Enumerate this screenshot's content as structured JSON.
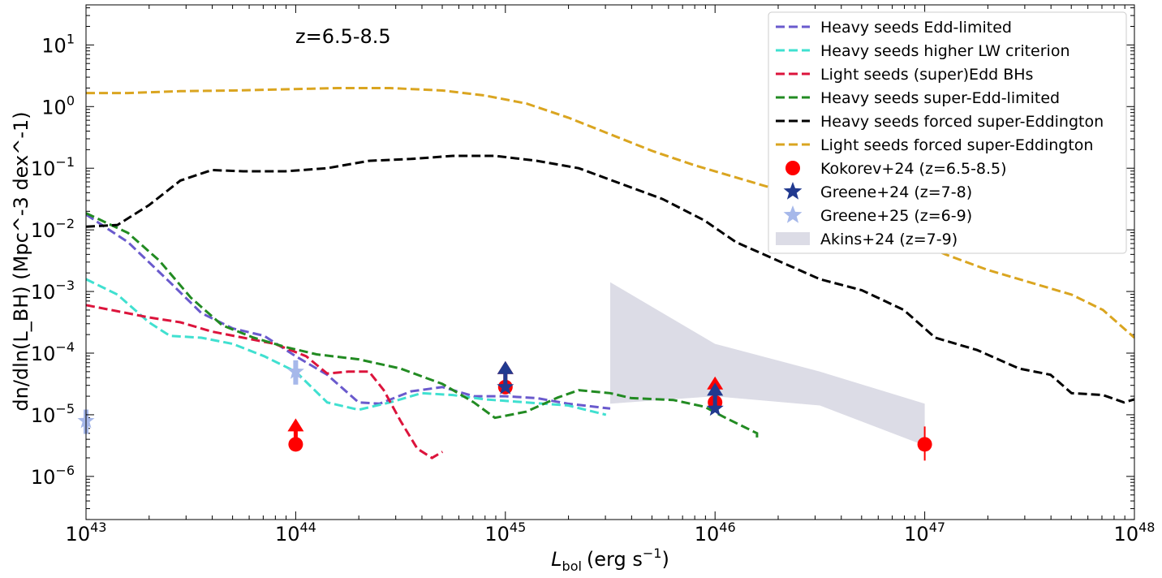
{
  "chart_data": {
    "type": "line",
    "annotation": "z=6.5-8.5",
    "xlabel_main": "L",
    "xlabel_sub": "bol",
    "xlabel_unit": "(erg s",
    "xlabel_exp": "−1",
    "xlabel_close": ")",
    "ylabel": "dn/dln(L_BH) (Mpc^-3 dex^-1)",
    "xscale": "log",
    "yscale": "log",
    "xlim_log10": [
      43,
      48
    ],
    "ylim_log10": [
      -6.7,
      1.65
    ],
    "x_ticks": [
      {
        "base": "10",
        "exp": "43",
        "log": 43
      },
      {
        "base": "10",
        "exp": "44",
        "log": 44
      },
      {
        "base": "10",
        "exp": "45",
        "log": 45
      },
      {
        "base": "10",
        "exp": "46",
        "log": 46
      },
      {
        "base": "10",
        "exp": "47",
        "log": 47
      },
      {
        "base": "10",
        "exp": "48",
        "log": 48
      }
    ],
    "y_ticks": [
      {
        "base": "10",
        "exp": "1",
        "log": 1
      },
      {
        "base": "10",
        "exp": "0",
        "log": 0
      },
      {
        "base": "10",
        "exp": "−1",
        "log": -1
      },
      {
        "base": "10",
        "exp": "−2",
        "log": -2
      },
      {
        "base": "10",
        "exp": "−3",
        "log": -3
      },
      {
        "base": "10",
        "exp": "−4",
        "log": -4
      },
      {
        "base": "10",
        "exp": "−5",
        "log": -5
      },
      {
        "base": "10",
        "exp": "−6",
        "log": -6
      }
    ],
    "series": [
      {
        "name": "Heavy seeds Edd-limited",
        "color": "#6a5acd",
        "points": [
          [
            43.0,
            -1.75
          ],
          [
            43.2,
            -2.2
          ],
          [
            43.4,
            -2.85
          ],
          [
            43.55,
            -3.35
          ],
          [
            43.7,
            -3.6
          ],
          [
            43.85,
            -3.72
          ],
          [
            44.0,
            -4.05
          ],
          [
            44.15,
            -4.35
          ],
          [
            44.3,
            -4.8
          ],
          [
            44.4,
            -4.82
          ],
          [
            44.55,
            -4.62
          ],
          [
            44.7,
            -4.55
          ],
          [
            44.85,
            -4.7
          ],
          [
            45.0,
            -4.7
          ],
          [
            45.15,
            -4.73
          ],
          [
            45.3,
            -4.82
          ],
          [
            45.5,
            -4.9
          ]
        ]
      },
      {
        "name": "Heavy seeds higher LW criterion",
        "color": "#40e0d0",
        "points": [
          [
            43.0,
            -2.8
          ],
          [
            43.15,
            -3.05
          ],
          [
            43.3,
            -3.5
          ],
          [
            43.4,
            -3.72
          ],
          [
            43.55,
            -3.75
          ],
          [
            43.7,
            -3.85
          ],
          [
            43.85,
            -4.05
          ],
          [
            44.0,
            -4.3
          ],
          [
            44.15,
            -4.8
          ],
          [
            44.3,
            -4.92
          ],
          [
            44.45,
            -4.8
          ],
          [
            44.6,
            -4.65
          ],
          [
            44.75,
            -4.68
          ],
          [
            44.9,
            -4.75
          ],
          [
            45.1,
            -4.8
          ],
          [
            45.3,
            -4.85
          ],
          [
            45.48,
            -5.0
          ]
        ]
      },
      {
        "name": "Light seeds (super)Edd BHs",
        "color": "#dc143c",
        "points": [
          [
            43.0,
            -3.22
          ],
          [
            43.15,
            -3.32
          ],
          [
            43.3,
            -3.42
          ],
          [
            43.45,
            -3.5
          ],
          [
            43.6,
            -3.65
          ],
          [
            43.75,
            -3.75
          ],
          [
            43.9,
            -3.85
          ],
          [
            44.05,
            -4.05
          ],
          [
            44.15,
            -4.33
          ],
          [
            44.25,
            -4.3
          ],
          [
            44.35,
            -4.3
          ],
          [
            44.42,
            -4.6
          ],
          [
            44.5,
            -5.1
          ],
          [
            44.58,
            -5.55
          ],
          [
            44.65,
            -5.7
          ],
          [
            44.7,
            -5.6
          ]
        ]
      },
      {
        "name": "Heavy seeds super-Edd-limited",
        "color": "#228b22",
        "points": [
          [
            43.0,
            -1.73
          ],
          [
            43.2,
            -2.05
          ],
          [
            43.35,
            -2.5
          ],
          [
            43.5,
            -3.1
          ],
          [
            43.65,
            -3.55
          ],
          [
            43.8,
            -3.75
          ],
          [
            43.95,
            -3.9
          ],
          [
            44.1,
            -4.02
          ],
          [
            44.3,
            -4.1
          ],
          [
            44.5,
            -4.25
          ],
          [
            44.7,
            -4.5
          ],
          [
            44.85,
            -4.8
          ],
          [
            44.95,
            -5.05
          ],
          [
            45.1,
            -4.95
          ],
          [
            45.25,
            -4.72
          ],
          [
            45.35,
            -4.6
          ],
          [
            45.5,
            -4.65
          ],
          [
            45.6,
            -4.73
          ],
          [
            45.8,
            -4.76
          ],
          [
            45.95,
            -4.87
          ],
          [
            46.05,
            -5.05
          ],
          [
            46.2,
            -5.3
          ],
          [
            46.2,
            -5.43
          ]
        ]
      },
      {
        "name": "Heavy seeds forced super-Eddington",
        "color": "#000000",
        "points": [
          [
            43.0,
            -1.95
          ],
          [
            43.15,
            -1.92
          ],
          [
            43.3,
            -1.6
          ],
          [
            43.45,
            -1.2
          ],
          [
            43.6,
            -1.03
          ],
          [
            43.75,
            -1.05
          ],
          [
            43.95,
            -1.05
          ],
          [
            44.15,
            -1.0
          ],
          [
            44.35,
            -0.88
          ],
          [
            44.55,
            -0.85
          ],
          [
            44.75,
            -0.8
          ],
          [
            44.95,
            -0.8
          ],
          [
            45.15,
            -0.88
          ],
          [
            45.35,
            -1.0
          ],
          [
            45.55,
            -1.25
          ],
          [
            45.75,
            -1.5
          ],
          [
            45.95,
            -1.85
          ],
          [
            46.1,
            -2.2
          ],
          [
            46.3,
            -2.5
          ],
          [
            46.5,
            -2.8
          ],
          [
            46.7,
            -2.98
          ],
          [
            46.9,
            -3.3
          ],
          [
            47.05,
            -3.75
          ],
          [
            47.25,
            -3.95
          ],
          [
            47.45,
            -4.25
          ],
          [
            47.6,
            -4.35
          ],
          [
            47.7,
            -4.65
          ],
          [
            47.85,
            -4.68
          ],
          [
            47.95,
            -4.8
          ],
          [
            48.0,
            -4.75
          ]
        ]
      },
      {
        "name": "Light seeds forced super-Eddington",
        "color": "#daa520",
        "points": [
          [
            43.0,
            0.22
          ],
          [
            43.2,
            0.22
          ],
          [
            43.45,
            0.25
          ],
          [
            43.7,
            0.26
          ],
          [
            43.95,
            0.28
          ],
          [
            44.2,
            0.3
          ],
          [
            44.45,
            0.3
          ],
          [
            44.7,
            0.26
          ],
          [
            44.9,
            0.18
          ],
          [
            45.1,
            0.05
          ],
          [
            45.3,
            -0.18
          ],
          [
            45.5,
            -0.45
          ],
          [
            45.7,
            -0.72
          ],
          [
            45.9,
            -0.95
          ],
          [
            46.1,
            -1.15
          ],
          [
            46.3,
            -1.35
          ],
          [
            46.5,
            -1.55
          ],
          [
            46.7,
            -1.75
          ],
          [
            46.9,
            -2.1
          ],
          [
            47.1,
            -2.4
          ],
          [
            47.3,
            -2.65
          ],
          [
            47.5,
            -2.85
          ],
          [
            47.7,
            -3.05
          ],
          [
            47.85,
            -3.3
          ],
          [
            47.95,
            -3.6
          ],
          [
            48.0,
            -3.75
          ]
        ]
      }
    ],
    "band": {
      "name": "Akins+24 (z=7-9)",
      "color": "#dcdce6",
      "upper": [
        [
          45.5,
          -2.85
        ],
        [
          46.0,
          -3.85
        ],
        [
          46.5,
          -4.3
        ],
        [
          47.0,
          -4.82
        ]
      ],
      "lower": [
        [
          45.5,
          -4.82
        ],
        [
          46.0,
          -4.7
        ],
        [
          46.5,
          -4.85
        ],
        [
          47.0,
          -5.5
        ]
      ]
    },
    "points": [
      {
        "name": "Kokorev+24 (z=6.5-8.5)",
        "color": "#ff0000",
        "marker": "circle",
        "data": [
          [
            44.0,
            -5.48,
            "lower"
          ],
          [
            45.0,
            -4.55,
            "lower"
          ],
          [
            46.0,
            -4.8,
            "lower"
          ],
          [
            47.0,
            -5.48,
            "err"
          ]
        ]
      },
      {
        "name": "Greene+24 (z=7-8)",
        "color": "#21398f",
        "marker": "star",
        "data": [
          [
            45.0,
            -4.55,
            "lower"
          ],
          [
            46.0,
            -4.9,
            "lower"
          ]
        ]
      },
      {
        "name": "Greene+25 (z=6-9)",
        "color": "#a6b8ea",
        "marker": "star",
        "data": [
          [
            44.0,
            -4.3,
            "err"
          ],
          [
            43.0,
            -5.1,
            "err"
          ]
        ]
      }
    ],
    "legend_position": "top-right"
  }
}
